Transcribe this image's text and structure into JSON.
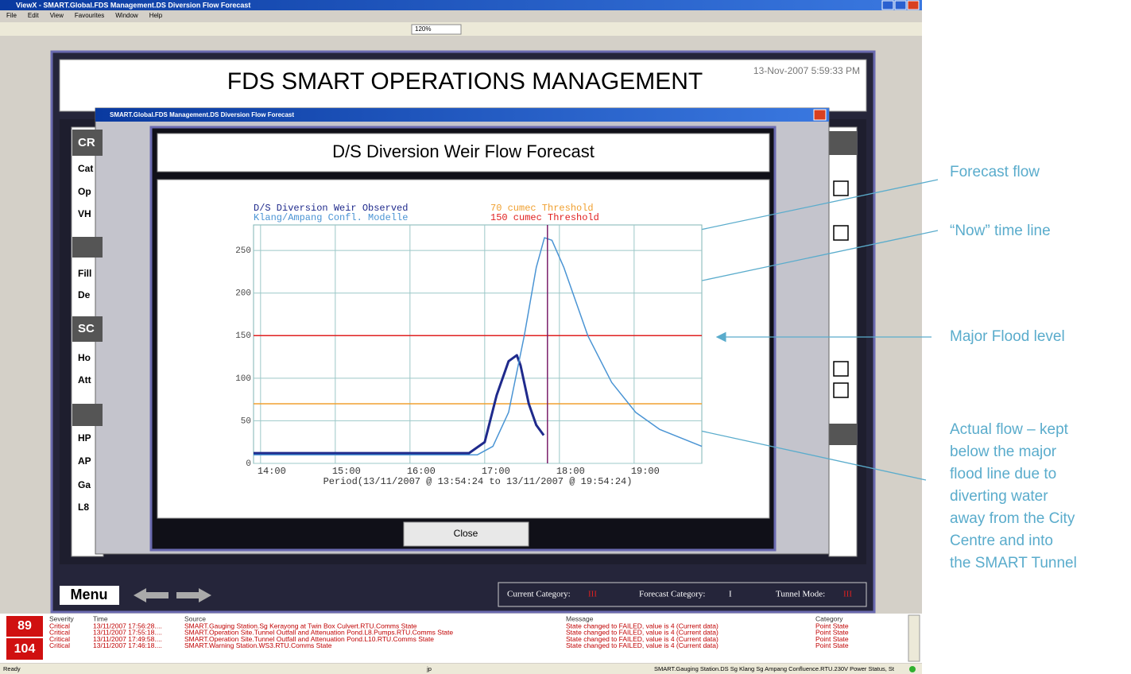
{
  "window": {
    "title": "ViewX - SMART.Global.FDS Management.DS Diversion Flow Forecast",
    "menu": [
      "File",
      "Edit",
      "View",
      "Favourites",
      "Window",
      "Help"
    ],
    "zoom": "120%"
  },
  "header": {
    "title": "FDS SMART OPERATIONS MANAGEMENT",
    "datetime": "13-Nov-2007 5:59:33 PM"
  },
  "background_panel": {
    "labels": [
      "CR",
      "Cat",
      "Op",
      "VH",
      "Fill",
      "De",
      "SC",
      "Ho",
      "Att",
      "HP",
      "AP",
      "Ga",
      "L8"
    ]
  },
  "dialog": {
    "title": "SMART.Global.FDS Management.DS Diversion Flow Forecast",
    "heading": "D/S Diversion Weir Flow Forecast",
    "close": "Close"
  },
  "chart_data": {
    "type": "line",
    "xlabel": "Period(13/11/2007 @ 13:54:24 to 13/11/2007 @ 19:54:24)",
    "xlim": [
      13.906,
      19.906
    ],
    "xticks": [
      {
        "value": 14,
        "label": "14:00"
      },
      {
        "value": 15,
        "label": "15:00"
      },
      {
        "value": 16,
        "label": "16:00"
      },
      {
        "value": 17,
        "label": "17:00"
      },
      {
        "value": 18,
        "label": "18:00"
      },
      {
        "value": 19,
        "label": "19:00"
      }
    ],
    "ylim": [
      0,
      280
    ],
    "yticks": [
      0,
      50,
      100,
      150,
      200,
      250
    ],
    "grid": true,
    "series": [
      {
        "name": "D/S Diversion Weir Observed",
        "color": "#1f2a8c",
        "x": [
          13.906,
          16.79,
          17.0,
          17.16,
          17.32,
          17.43,
          17.48,
          17.59,
          17.69,
          17.79
        ],
        "values": [
          12,
          12,
          25,
          80,
          120,
          127,
          115,
          70,
          45,
          33
        ]
      },
      {
        "name": "Klang/Ampang Confl. Modelle",
        "color": "#4a94d4",
        "x": [
          13.906,
          16.9,
          17.11,
          17.32,
          17.53,
          17.69,
          17.8,
          17.9,
          18.06,
          18.38,
          18.7,
          19.02,
          19.34,
          19.906
        ],
        "values": [
          10,
          10,
          20,
          60,
          150,
          230,
          265,
          262,
          230,
          150,
          95,
          60,
          40,
          20
        ]
      }
    ],
    "thresholds": [
      {
        "name": "70 cumec Threshold",
        "color": "#f0a030",
        "value": 70
      },
      {
        "name": "150 cumec Threshold",
        "color": "#e02020",
        "value": 150
      }
    ],
    "now_line": {
      "value": 17.84,
      "color": "#7a1f6a"
    }
  },
  "bottom_bar": {
    "menu": "Menu",
    "current_label": "Current Category:",
    "current": "III",
    "forecast_label": "Forecast Category:",
    "forecast": "I",
    "tunnel_label": "Tunnel Mode:",
    "tunnel": "III"
  },
  "alarms": {
    "counts": [
      "89",
      "104"
    ],
    "headers": [
      "Severity",
      "Time",
      "Source",
      "Message",
      "Category"
    ],
    "rows": [
      [
        "Critical",
        "13/11/2007 17:56:28....",
        "SMART.Gauging Station.Sg Kerayong at Twin Box Culvert.RTU.Comms State",
        "State changed to FAILED, value is 4 (Current data)",
        "Point State"
      ],
      [
        "Critical",
        "13/11/2007 17:55:18....",
        "SMART.Operation Site.Tunnel Outfall and Attenuation Pond.L8.Pumps.RTU.Comms State",
        "State changed to FAILED, value is 4 (Current data)",
        "Point State"
      ],
      [
        "Critical",
        "13/11/2007 17:49:58....",
        "SMART.Operation Site.Tunnel Outfall and Attenuation Pond.L10.RTU.Comms State",
        "State changed to FAILED, value is 4 (Current data)",
        "Point State"
      ],
      [
        "Critical",
        "13/11/2007 17:46:18....",
        "SMART.Warning Station.WS3.RTU.Comms State",
        "State changed to FAILED, value is 4 (Current data)",
        "Point State"
      ]
    ]
  },
  "status_bar": [
    "Ready",
    "jp",
    "SMART.Gauging Station.DS Sg Klang Sg Ampang Confluence.RTU.230V Power Status, St"
  ],
  "annotations": [
    {
      "lines": [
        "Forecast flow"
      ]
    },
    {
      "lines": [
        "“Now” time line"
      ]
    },
    {
      "lines": [
        "Major Flood level"
      ]
    },
    {
      "lines": [
        "Actual flow – kept",
        "below the major",
        "flood line due to",
        "diverting water",
        "away from the City",
        "Centre and into",
        "the SMART Tunnel"
      ]
    }
  ]
}
